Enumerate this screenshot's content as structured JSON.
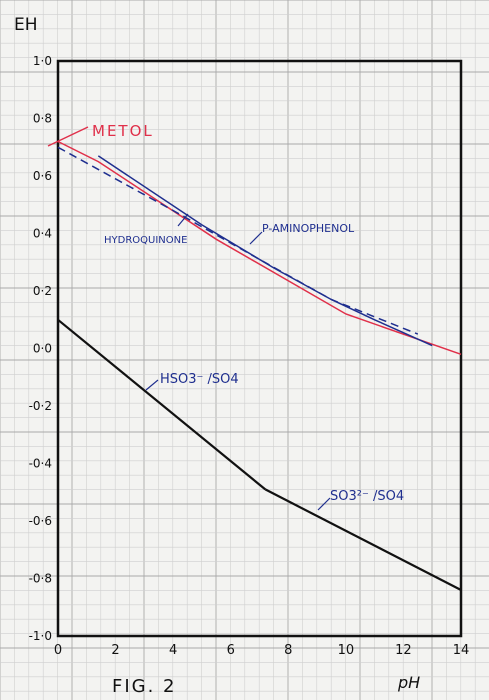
{
  "chart_data": {
    "type": "line",
    "title": "",
    "xlabel": "pH",
    "ylabel": "EH",
    "xlim": [
      0,
      14
    ],
    "ylim": [
      -1.0,
      1.0
    ],
    "grid": true,
    "xticks": [
      0,
      2,
      4,
      6,
      8,
      10,
      12,
      14
    ],
    "yticks": [
      1.0,
      0.8,
      0.6,
      0.4,
      0.2,
      0.0,
      -0.2,
      -0.4,
      -0.6,
      -0.8,
      -1.0
    ],
    "xtick_labels": [
      "0",
      "2",
      "4",
      "6",
      "8",
      "10",
      "12",
      "14"
    ],
    "ytick_labels": [
      "1·0",
      "0·8",
      "0·6",
      "0·4",
      "0·2",
      "0·0",
      "-0·2",
      "-0·4",
      "-0·6",
      "-0·8",
      "-1·0"
    ],
    "series": [
      {
        "name": "METOL",
        "color": "#e0304a",
        "dash": "solid",
        "x": [
          0,
          1.4,
          5.5,
          10,
          14
        ],
        "y": [
          0.72,
          0.65,
          0.38,
          0.12,
          -0.02
        ]
      },
      {
        "name": "HYDROQUINONE",
        "color": "#1f2f8f",
        "dash": "dashed",
        "x": [
          0,
          4,
          7,
          9.5,
          12.5
        ],
        "y": [
          0.7,
          0.48,
          0.31,
          0.17,
          0.05
        ]
      },
      {
        "name": "P-AMINOPHENOL",
        "color": "#1f2f8f",
        "dash": "solid",
        "x": [
          1.4,
          5,
          7.5,
          9.5,
          11,
          13
        ],
        "y": [
          0.67,
          0.43,
          0.28,
          0.17,
          0.1,
          0.01
        ]
      },
      {
        "name": "HSO3- / SO4",
        "color": "#111111",
        "dash": "solid",
        "x": [
          0,
          7.2
        ],
        "y": [
          0.1,
          -0.49
        ]
      },
      {
        "name": "SO3 2- / SO4",
        "color": "#111111",
        "dash": "solid",
        "x": [
          7.2,
          14
        ],
        "y": [
          -0.49,
          -0.84
        ]
      }
    ]
  },
  "labels": {
    "metol": "METOL",
    "hydroquinone": "HYDROQUINONE",
    "p_aminophenol": "P-AMINOPHENOL",
    "hso3": "HSO3⁻ /SO4",
    "so3": "SO3²⁻ /SO4",
    "fig": "FIG. 2",
    "eh": "EH",
    "ph": "pH"
  }
}
